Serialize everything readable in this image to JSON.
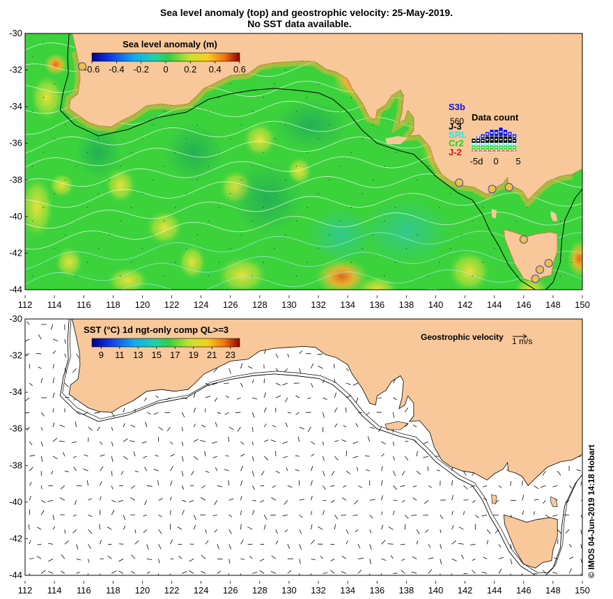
{
  "title_line1": "Sea level anomaly (top) and geostrophic velocity: 25-May-2019.",
  "title_line2": "No SST data available.",
  "top_map": {
    "colorbar_title": "Sea level anomaly (m)",
    "colorbar_ticks": [
      "-0.6",
      "-0.4",
      "-0.2",
      "0",
      "0.2",
      "0.4",
      "0.6"
    ],
    "colorbar_range": [
      -0.6,
      0.6
    ],
    "data_count_title": "Data count",
    "data_count_xticks": [
      "-5d",
      "0",
      "5"
    ],
    "data_count_number": "560",
    "missions": [
      {
        "name": "S3b",
        "color": "#1010e0"
      },
      {
        "name": "J-3",
        "color": "#000000"
      },
      {
        "name": "SRL",
        "color": "#30e0e0"
      },
      {
        "name": "Cr2",
        "color": "#20d020"
      },
      {
        "name": "J-2",
        "color": "#e01010"
      }
    ],
    "tide_gauge_markers": 8
  },
  "bottom_map": {
    "colorbar_title": "SST (°C) 1d ngt-only comp QL>=3",
    "colorbar_ticks": [
      "9",
      "11",
      "13",
      "15",
      "17",
      "19",
      "21",
      "23"
    ],
    "colorbar_range": [
      8,
      24
    ],
    "velocity_legend_label": "Geostrophic velocity",
    "velocity_legend_unit": "1 m/s"
  },
  "axes": {
    "lon_ticks": [
      "112",
      "114",
      "116",
      "118",
      "120",
      "122",
      "124",
      "126",
      "128",
      "130",
      "132",
      "134",
      "136",
      "138",
      "140",
      "142",
      "144",
      "146",
      "148",
      "150"
    ],
    "lat_ticks": [
      "-30",
      "-32",
      "-34",
      "-36",
      "-38",
      "-40",
      "-42",
      "-44"
    ],
    "lon_range": [
      112,
      150
    ],
    "lat_range": [
      -30,
      -44
    ]
  },
  "credit": "© IMOS 04-Jun-2019 14:18 Hobart",
  "colors": {
    "land": "#f8c89a",
    "slope_green": "#3cd23c"
  }
}
